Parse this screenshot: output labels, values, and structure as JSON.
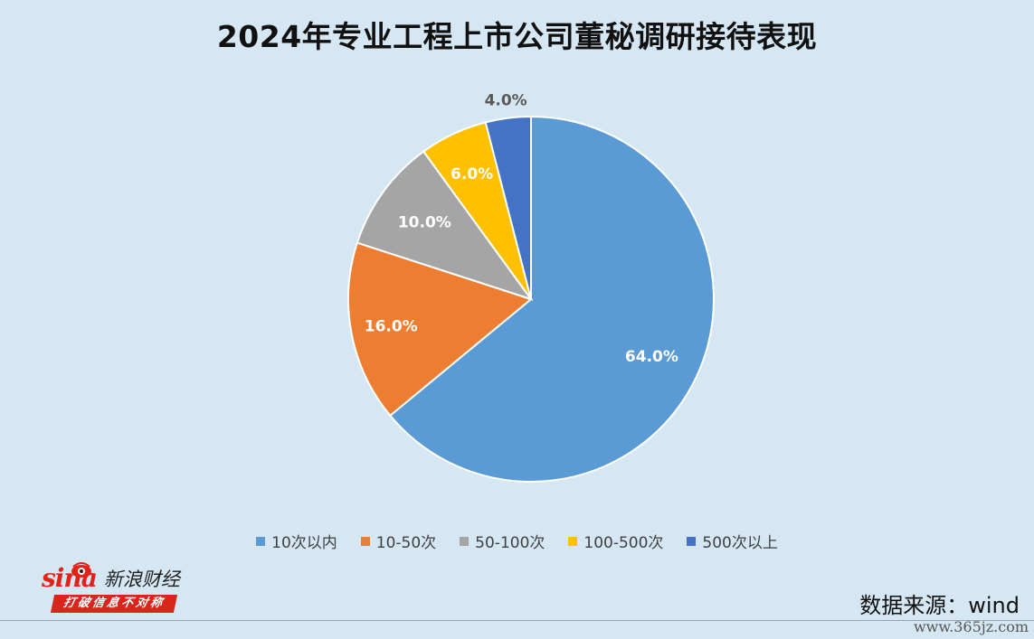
{
  "chart_data": {
    "type": "pie",
    "title": "2024年专业工程上市公司董秘调研接待表现",
    "categories": [
      "10次以内",
      "10-50次",
      "50-100次",
      "100-500次",
      "500次以上"
    ],
    "values": [
      64.0,
      16.0,
      10.0,
      6.0,
      4.0
    ],
    "labels": [
      "64.0%",
      "16.0%",
      "10.0%",
      "6.0%",
      "4.0%"
    ],
    "colors": [
      "#5b9bd5",
      "#ed7d31",
      "#a5a5a5",
      "#ffc000",
      "#4472c4"
    ],
    "legend_position": "bottom",
    "start_angle": "12 o'clock",
    "direction": "clockwise"
  },
  "logo": {
    "brand": "sina",
    "name": "新浪财经",
    "slogan": "打破信息不对称"
  },
  "source": "数据来源：wind",
  "watermark": "www.365jz.com"
}
